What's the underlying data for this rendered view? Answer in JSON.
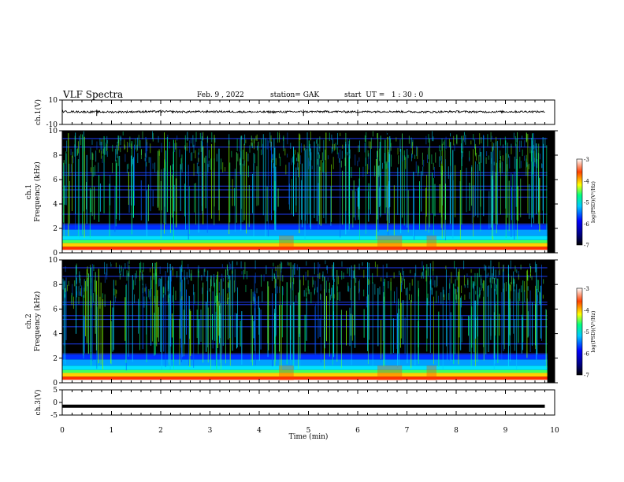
{
  "header": {
    "title": "VLF Spectra",
    "date": "Feb. 9 , 2022",
    "station": "station= GAK",
    "start": "start  UT =   1 : 30 : 0"
  },
  "chart_data": [
    {
      "type": "line",
      "panel": "ch1-waveform",
      "ylabel": "ch.1(V)",
      "ylim": [
        -10,
        10
      ],
      "yticks": [
        "10",
        "-10"
      ],
      "x": [
        0,
        0.5,
        1,
        1.5,
        2,
        2.5,
        3,
        3.5,
        4,
        4.5,
        5,
        5.5,
        6,
        6.5,
        7,
        7.5,
        8,
        8.5,
        9,
        9.5,
        9.8
      ],
      "values": [
        0.5,
        0.3,
        0.2,
        0.4,
        0.6,
        0.3,
        0.5,
        0.4,
        0.2,
        0.3,
        0.4,
        0.5,
        0.3,
        0.6,
        0.4,
        0.2,
        0.5,
        0.3,
        0.4,
        0.5,
        0.3
      ]
    },
    {
      "type": "heatmap",
      "panel": "ch1-spectrogram",
      "ylabel": "ch.1\nFrequency (kHz)",
      "ylim": [
        0,
        10
      ],
      "yticks": [
        "0",
        "2",
        "4",
        "6",
        "8",
        "10"
      ],
      "colorbar": {
        "label": "log(PSD)(V²/Hz)",
        "ticks": [
          "-3",
          "-4",
          "-5",
          "-6",
          "-7"
        ],
        "range": [
          -7,
          -3
        ]
      }
    },
    {
      "type": "heatmap",
      "panel": "ch2-spectrogram",
      "ylabel": "ch.2\nFrequency (kHz)",
      "ylim": [
        0,
        10
      ],
      "yticks": [
        "0",
        "2",
        "4",
        "6",
        "8",
        "10"
      ],
      "colorbar": {
        "label": "log(PSD)(V²/Hz)",
        "ticks": [
          "-3",
          "-4",
          "-5",
          "-6",
          "-7"
        ],
        "range": [
          -7,
          -3
        ]
      }
    },
    {
      "type": "line",
      "panel": "ch3-waveform",
      "ylabel": "ch.3(V)",
      "ylim": [
        -5,
        5
      ],
      "yticks": [
        "5",
        "0",
        "-5"
      ],
      "x": [
        0,
        9.8
      ],
      "values": [
        -1.5,
        -1.5
      ]
    }
  ],
  "xaxis": {
    "label": "Time (min)",
    "ticks": [
      "0",
      "1",
      "2",
      "3",
      "4",
      "5",
      "6",
      "7",
      "8",
      "9",
      "10"
    ],
    "xlim": [
      0,
      10
    ]
  }
}
